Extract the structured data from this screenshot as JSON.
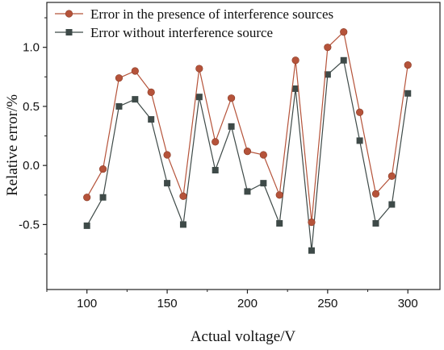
{
  "chart_data": {
    "type": "line",
    "xlabel": "Actual voltage/V",
    "ylabel": "Relative error/%",
    "xlim": [
      75,
      320
    ],
    "ylim": [
      -1.05,
      1.38
    ],
    "xticks": [
      {
        "value": 100,
        "label": "100"
      },
      {
        "value": 150,
        "label": "150"
      },
      {
        "value": 200,
        "label": "200"
      },
      {
        "value": 250,
        "label": "250"
      },
      {
        "value": 300,
        "label": "300"
      }
    ],
    "yticks": [
      {
        "value": -0.5,
        "label": "-0.5"
      },
      {
        "value": 0.0,
        "label": "0.0"
      },
      {
        "value": 0.5,
        "label": "0.5"
      },
      {
        "value": 1.0,
        "label": "1.0"
      }
    ],
    "legend_position": "top-left",
    "x": [
      100,
      110,
      120,
      130,
      140,
      150,
      160,
      170,
      180,
      190,
      200,
      210,
      220,
      230,
      240,
      250,
      260,
      270,
      280,
      290,
      300
    ],
    "series": [
      {
        "name": "Error in the presence of interference sources",
        "color": "#b5533a",
        "marker": "circle",
        "values": [
          -0.27,
          -0.03,
          0.74,
          0.8,
          0.62,
          0.09,
          -0.26,
          0.82,
          0.2,
          0.57,
          0.12,
          0.09,
          -0.25,
          0.89,
          -0.48,
          1.0,
          1.13,
          0.45,
          -0.24,
          -0.09,
          0.85
        ]
      },
      {
        "name": "Error without interference source",
        "color": "#3e4a48",
        "marker": "square",
        "values": [
          -0.51,
          -0.27,
          0.5,
          0.56,
          0.39,
          -0.15,
          -0.5,
          0.58,
          -0.04,
          0.33,
          -0.22,
          -0.15,
          -0.49,
          0.65,
          -0.72,
          0.77,
          0.89,
          0.21,
          -0.49,
          -0.33,
          0.61
        ]
      }
    ]
  }
}
